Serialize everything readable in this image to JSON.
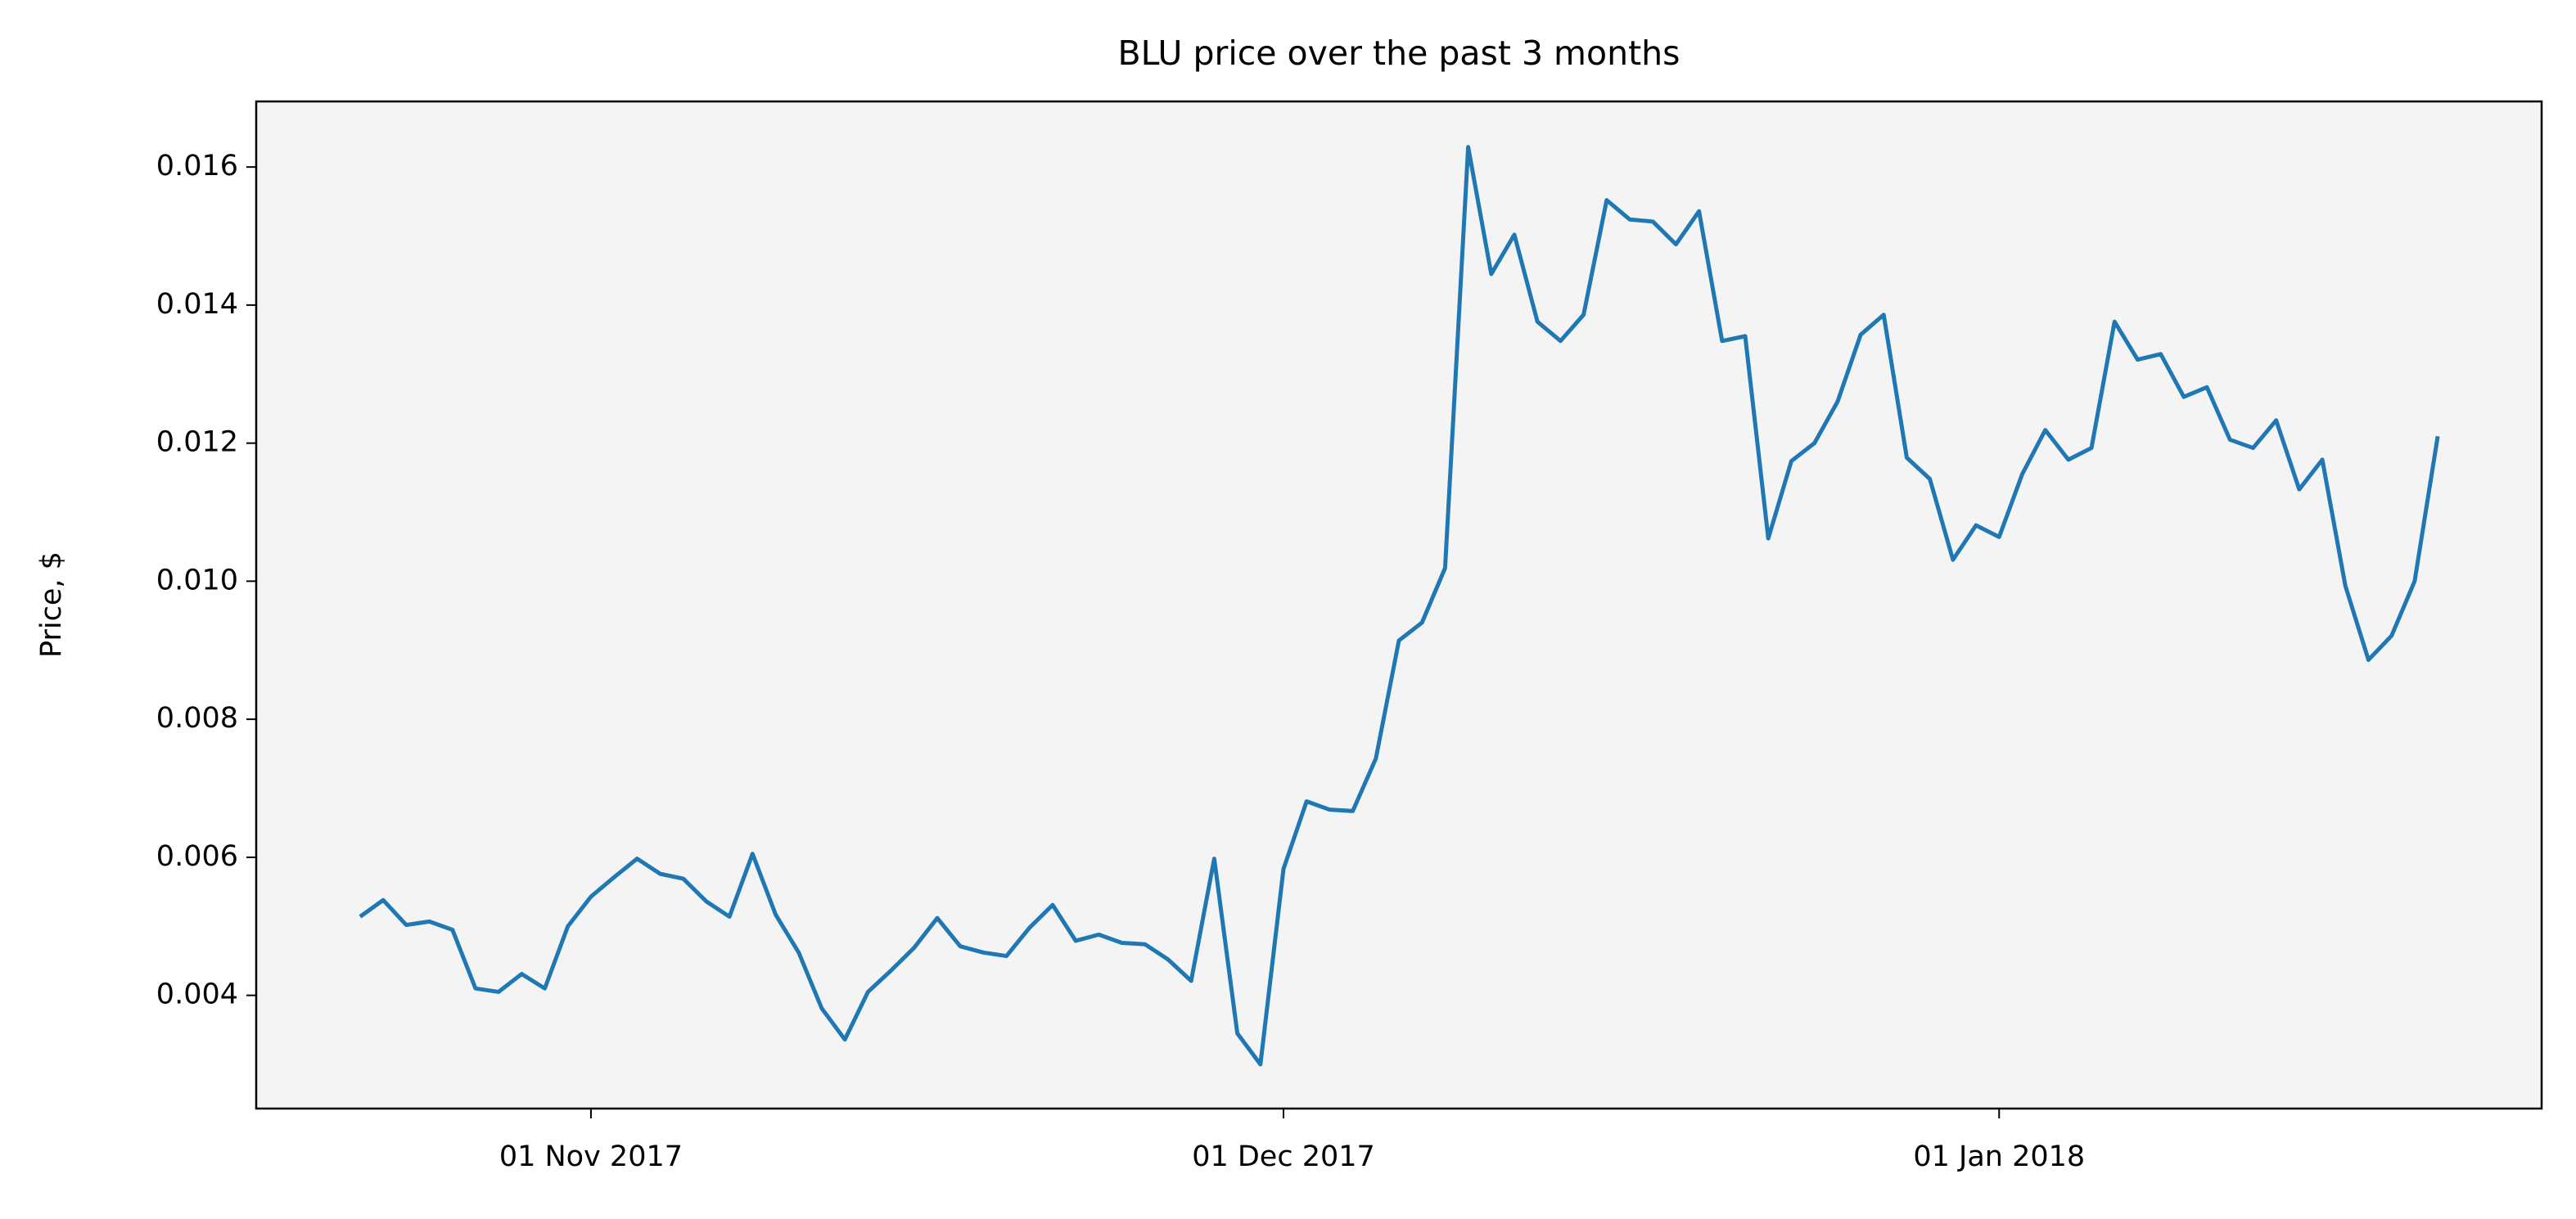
{
  "chart_data": {
    "type": "line",
    "title": "BLU price over the past 3 months",
    "y_label": "Price, $",
    "x": [
      "2017-10-22",
      "2017-10-23",
      "2017-10-24",
      "2017-10-25",
      "2017-10-26",
      "2017-10-27",
      "2017-10-28",
      "2017-10-29",
      "2017-10-30",
      "2017-10-31",
      "2017-11-01",
      "2017-11-02",
      "2017-11-03",
      "2017-11-04",
      "2017-11-05",
      "2017-11-06",
      "2017-11-07",
      "2017-11-08",
      "2017-11-09",
      "2017-11-10",
      "2017-11-11",
      "2017-11-12",
      "2017-11-13",
      "2017-11-14",
      "2017-11-15",
      "2017-11-16",
      "2017-11-17",
      "2017-11-18",
      "2017-11-19",
      "2017-11-20",
      "2017-11-21",
      "2017-11-22",
      "2017-11-23",
      "2017-11-24",
      "2017-11-25",
      "2017-11-26",
      "2017-11-27",
      "2017-11-28",
      "2017-11-29",
      "2017-11-30",
      "2017-12-01",
      "2017-12-02",
      "2017-12-03",
      "2017-12-04",
      "2017-12-05",
      "2017-12-06",
      "2017-12-07",
      "2017-12-08",
      "2017-12-09",
      "2017-12-10",
      "2017-12-11",
      "2017-12-12",
      "2017-12-13",
      "2017-12-14",
      "2017-12-15",
      "2017-12-16",
      "2017-12-17",
      "2017-12-18",
      "2017-12-19",
      "2017-12-20",
      "2017-12-21",
      "2017-12-22",
      "2017-12-23",
      "2017-12-24",
      "2017-12-25",
      "2017-12-26",
      "2017-12-27",
      "2017-12-28",
      "2017-12-29",
      "2017-12-30",
      "2017-12-31",
      "2018-01-01",
      "2018-01-02",
      "2018-01-03",
      "2018-01-04",
      "2018-01-05",
      "2018-01-06",
      "2018-01-07",
      "2018-01-08",
      "2018-01-09",
      "2018-01-10",
      "2018-01-11",
      "2018-01-12",
      "2018-01-13",
      "2018-01-14",
      "2018-01-15",
      "2018-01-16",
      "2018-01-17",
      "2018-01-18",
      "2018-01-19",
      "2018-01-20"
    ],
    "series": [
      {
        "color": "#1f77b4",
        "values": [
          0.00514,
          0.00538,
          0.00502,
          0.00507,
          0.00495,
          0.0041,
          0.00405,
          0.00431,
          0.0041,
          0.005,
          0.00543,
          0.00571,
          0.00598,
          0.00576,
          0.00569,
          0.00536,
          0.00514,
          0.00605,
          0.00517,
          0.00462,
          0.00381,
          0.00336,
          0.00405,
          0.00436,
          0.00469,
          0.00512,
          0.00471,
          0.00462,
          0.00457,
          0.00498,
          0.00531,
          0.00479,
          0.00488,
          0.00476,
          0.00474,
          0.00452,
          0.00421,
          0.00598,
          0.00345,
          0.003,
          0.00583,
          0.00681,
          0.00669,
          0.00667,
          0.00743,
          0.00914,
          0.0094,
          0.01019,
          0.01629,
          0.01445,
          0.01502,
          0.01376,
          0.01348,
          0.01386,
          0.01552,
          0.01524,
          0.01521,
          0.01488,
          0.01536,
          0.01348,
          0.01355,
          0.01062,
          0.01174,
          0.012,
          0.0126,
          0.01357,
          0.01386,
          0.01179,
          0.01148,
          0.01031,
          0.01081,
          0.01064,
          0.01155,
          0.01219,
          0.01176,
          0.01193,
          0.01376,
          0.01321,
          0.01329,
          0.01267,
          0.01281,
          0.01205,
          0.01193,
          0.01233,
          0.01133,
          0.01176,
          0.00993,
          0.00886,
          0.00921,
          0.01,
          0.0121
        ]
      }
    ],
    "xlim": [
      "2017-10-17T12:00",
      "2018-01-24T12:00"
    ],
    "xticks": [
      {
        "value": "2017-11-01",
        "label": "01 Nov 2017"
      },
      {
        "value": "2017-12-01",
        "label": "01 Dec 2017"
      },
      {
        "value": "2018-01-01",
        "label": "01 Jan 2018"
      }
    ],
    "ylim": [
      0.00236,
      0.01695
    ],
    "yticks": [
      0.004,
      0.006,
      0.008,
      {
        "value": 0.01,
        "label": "0.010"
      },
      0.012,
      0.014,
      0.016
    ],
    "grid": false,
    "background": "#f4f4f4"
  }
}
